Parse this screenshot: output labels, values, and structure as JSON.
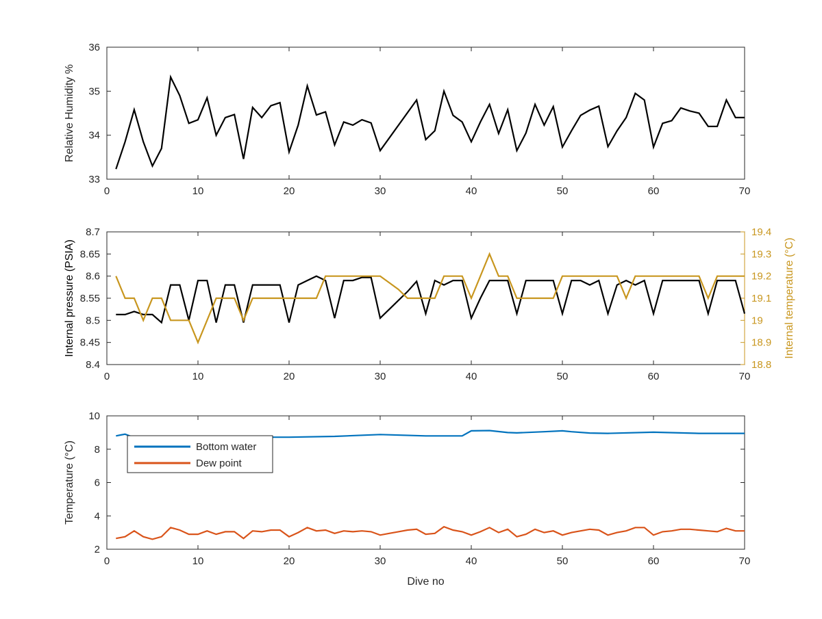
{
  "chart_data": [
    {
      "type": "line",
      "ylabel": "Relative Humidity %",
      "xlim": [
        0,
        70
      ],
      "ylim": [
        33,
        36
      ],
      "xticks": [
        "0",
        "10",
        "20",
        "30",
        "40",
        "50",
        "60",
        "70"
      ],
      "yticks": [
        "33",
        "34",
        "35",
        "36"
      ],
      "grid": false,
      "series": [
        {
          "color": "#000000",
          "x": [
            1,
            2,
            3,
            4,
            5,
            6,
            7,
            8,
            9,
            10,
            11,
            12,
            13,
            14,
            15,
            16,
            17,
            18,
            19,
            20,
            21,
            22,
            23,
            24,
            25,
            26,
            27,
            28,
            29,
            30,
            34,
            35,
            36,
            37,
            38,
            39,
            40,
            41,
            42,
            43,
            44,
            45,
            46,
            47,
            48,
            49,
            50,
            51,
            52,
            53,
            54,
            55,
            56,
            57,
            58,
            59,
            60,
            61,
            62,
            63,
            64,
            65,
            66,
            67,
            68,
            69,
            70
          ],
          "values": [
            33.23,
            33.85,
            34.58,
            33.85,
            33.3,
            33.7,
            35.32,
            34.9,
            34.27,
            34.35,
            34.85,
            34.0,
            34.4,
            34.47,
            33.46,
            34.63,
            34.4,
            34.67,
            34.74,
            33.62,
            34.23,
            35.12,
            34.46,
            34.53,
            33.78,
            34.3,
            34.23,
            34.35,
            34.28,
            33.65,
            34.8,
            33.9,
            34.1,
            35.0,
            34.45,
            34.3,
            33.85,
            34.3,
            34.7,
            34.04,
            34.58,
            33.65,
            34.05,
            34.7,
            34.23,
            34.65,
            33.73,
            34.1,
            34.45,
            34.57,
            34.66,
            33.74,
            34.1,
            34.4,
            34.95,
            34.8,
            33.73,
            34.27,
            34.33,
            34.62,
            34.55,
            34.5,
            34.2,
            34.2,
            34.8,
            34.4,
            34.4
          ]
        }
      ]
    },
    {
      "type": "line",
      "ylabel": "Internal pressure (PSIA)",
      "y2label": "Internal temperature (°C)",
      "xlim": [
        0,
        70
      ],
      "ylim": [
        8.4,
        8.7
      ],
      "y2lim": [
        18.8,
        19.4
      ],
      "xticks": [
        "0",
        "10",
        "20",
        "30",
        "40",
        "50",
        "60",
        "70"
      ],
      "yticks": [
        "8.4",
        "8.45",
        "8.5",
        "8.55",
        "8.6",
        "8.65",
        "8.7"
      ],
      "y2ticks": [
        "18.8",
        "18.9",
        "19",
        "19.1",
        "19.2",
        "19.3",
        "19.4"
      ],
      "grid": false,
      "series": [
        {
          "color": "#000000",
          "axis": "left",
          "x": [
            1,
            2,
            3,
            4,
            5,
            6,
            7,
            8,
            9,
            10,
            11,
            12,
            13,
            14,
            15,
            16,
            17,
            18,
            19,
            20,
            21,
            22,
            23,
            24,
            25,
            26,
            27,
            28,
            29,
            30,
            31,
            32,
            33,
            34,
            35,
            36,
            37,
            38,
            39,
            40,
            41,
            42,
            43,
            44,
            45,
            46,
            47,
            48,
            49,
            50,
            51,
            52,
            53,
            54,
            55,
            56,
            57,
            58,
            59,
            60,
            61,
            62,
            63,
            64,
            65,
            66,
            67,
            68,
            69,
            70
          ],
          "values": [
            8.513,
            8.513,
            8.52,
            8.513,
            8.513,
            8.495,
            8.58,
            8.58,
            8.5,
            8.59,
            8.59,
            8.495,
            8.58,
            8.58,
            8.495,
            8.58,
            8.58,
            8.58,
            8.58,
            8.495,
            8.58,
            8.59,
            8.6,
            8.59,
            8.505,
            8.59,
            8.59,
            8.597,
            8.597,
            8.505,
            8.525,
            8.545,
            8.565,
            8.588,
            8.515,
            8.59,
            8.58,
            8.59,
            8.59,
            8.505,
            8.55,
            8.59,
            8.59,
            8.59,
            8.515,
            8.59,
            8.59,
            8.59,
            8.59,
            8.515,
            8.59,
            8.59,
            8.58,
            8.59,
            8.515,
            8.58,
            8.59,
            8.58,
            8.59,
            8.515,
            8.59,
            8.59,
            8.59,
            8.59,
            8.59,
            8.515,
            8.59,
            8.59,
            8.59,
            8.515
          ]
        },
        {
          "color": "#c8961e",
          "axis": "right",
          "x": [
            1,
            2,
            3,
            4,
            5,
            6,
            7,
            8,
            9,
            10,
            11,
            12,
            13,
            14,
            15,
            16,
            17,
            18,
            19,
            20,
            21,
            22,
            23,
            24,
            25,
            26,
            27,
            28,
            29,
            30,
            31,
            32,
            33,
            34,
            35,
            36,
            37,
            38,
            39,
            40,
            41,
            42,
            43,
            44,
            45,
            46,
            47,
            48,
            49,
            50,
            51,
            52,
            53,
            54,
            55,
            56,
            57,
            58,
            59,
            60,
            61,
            62,
            63,
            64,
            65,
            66,
            67,
            68,
            69,
            70
          ],
          "values": [
            19.2,
            19.1,
            19.1,
            19.0,
            19.1,
            19.1,
            19.0,
            19.0,
            19.0,
            18.9,
            19.0,
            19.1,
            19.1,
            19.1,
            19.0,
            19.1,
            19.1,
            19.1,
            19.1,
            19.1,
            19.1,
            19.1,
            19.1,
            19.2,
            19.2,
            19.2,
            19.2,
            19.2,
            19.2,
            19.2,
            19.17,
            19.14,
            19.1,
            19.1,
            19.1,
            19.1,
            19.2,
            19.2,
            19.2,
            19.1,
            19.2,
            19.3,
            19.2,
            19.2,
            19.1,
            19.1,
            19.1,
            19.1,
            19.1,
            19.2,
            19.2,
            19.2,
            19.2,
            19.2,
            19.2,
            19.2,
            19.1,
            19.2,
            19.2,
            19.2,
            19.2,
            19.2,
            19.2,
            19.2,
            19.2,
            19.1,
            19.2,
            19.2,
            19.2,
            19.2
          ]
        }
      ]
    },
    {
      "type": "line",
      "xlabel": "Dive no",
      "ylabel": "Temperature (°C)",
      "xlim": [
        0,
        70
      ],
      "ylim": [
        2,
        10
      ],
      "xticks": [
        "0",
        "10",
        "20",
        "30",
        "40",
        "50",
        "60",
        "70"
      ],
      "yticks": [
        "2",
        "4",
        "6",
        "8",
        "10"
      ],
      "grid": false,
      "legend_position": "top-left",
      "series": [
        {
          "name": "Bottom water",
          "color": "#0072bd",
          "x": [
            1,
            1.5,
            2,
            2.5,
            3,
            5,
            8,
            10,
            15,
            20,
            25,
            30,
            35,
            39,
            40,
            42,
            44,
            45,
            48,
            50,
            51,
            53,
            55,
            60,
            65,
            70
          ],
          "values": [
            8.8,
            8.85,
            8.9,
            8.8,
            8.75,
            8.75,
            8.72,
            8.72,
            8.72,
            8.72,
            8.77,
            8.88,
            8.8,
            8.8,
            9.1,
            9.12,
            9.0,
            8.98,
            9.05,
            9.1,
            9.05,
            8.97,
            8.95,
            9.02,
            8.95,
            8.95
          ]
        },
        {
          "name": "Dew point",
          "color": "#d95319",
          "x": [
            1,
            2,
            3,
            4,
            5,
            6,
            7,
            8,
            9,
            10,
            11,
            12,
            13,
            14,
            15,
            16,
            17,
            18,
            19,
            20,
            21,
            22,
            23,
            24,
            25,
            26,
            27,
            28,
            29,
            30,
            31,
            32,
            33,
            34,
            35,
            36,
            37,
            38,
            39,
            40,
            41,
            42,
            43,
            44,
            45,
            46,
            47,
            48,
            49,
            50,
            51,
            52,
            53,
            54,
            55,
            56,
            57,
            58,
            59,
            60,
            61,
            62,
            63,
            64,
            65,
            66,
            67,
            68,
            69,
            70
          ],
          "values": [
            2.65,
            2.75,
            3.1,
            2.75,
            2.6,
            2.75,
            3.3,
            3.15,
            2.9,
            2.9,
            3.1,
            2.9,
            3.05,
            3.05,
            2.65,
            3.1,
            3.05,
            3.15,
            3.15,
            2.75,
            3.0,
            3.3,
            3.1,
            3.15,
            2.95,
            3.1,
            3.05,
            3.1,
            3.05,
            2.85,
            2.95,
            3.05,
            3.15,
            3.2,
            2.9,
            2.95,
            3.35,
            3.15,
            3.05,
            2.85,
            3.05,
            3.3,
            3.0,
            3.2,
            2.75,
            2.9,
            3.2,
            3.0,
            3.1,
            2.85,
            3.0,
            3.1,
            3.2,
            3.15,
            2.85,
            3.0,
            3.1,
            3.3,
            3.3,
            2.85,
            3.05,
            3.1,
            3.2,
            3.2,
            3.15,
            3.1,
            3.05,
            3.25,
            3.1,
            3.1
          ]
        }
      ]
    }
  ]
}
